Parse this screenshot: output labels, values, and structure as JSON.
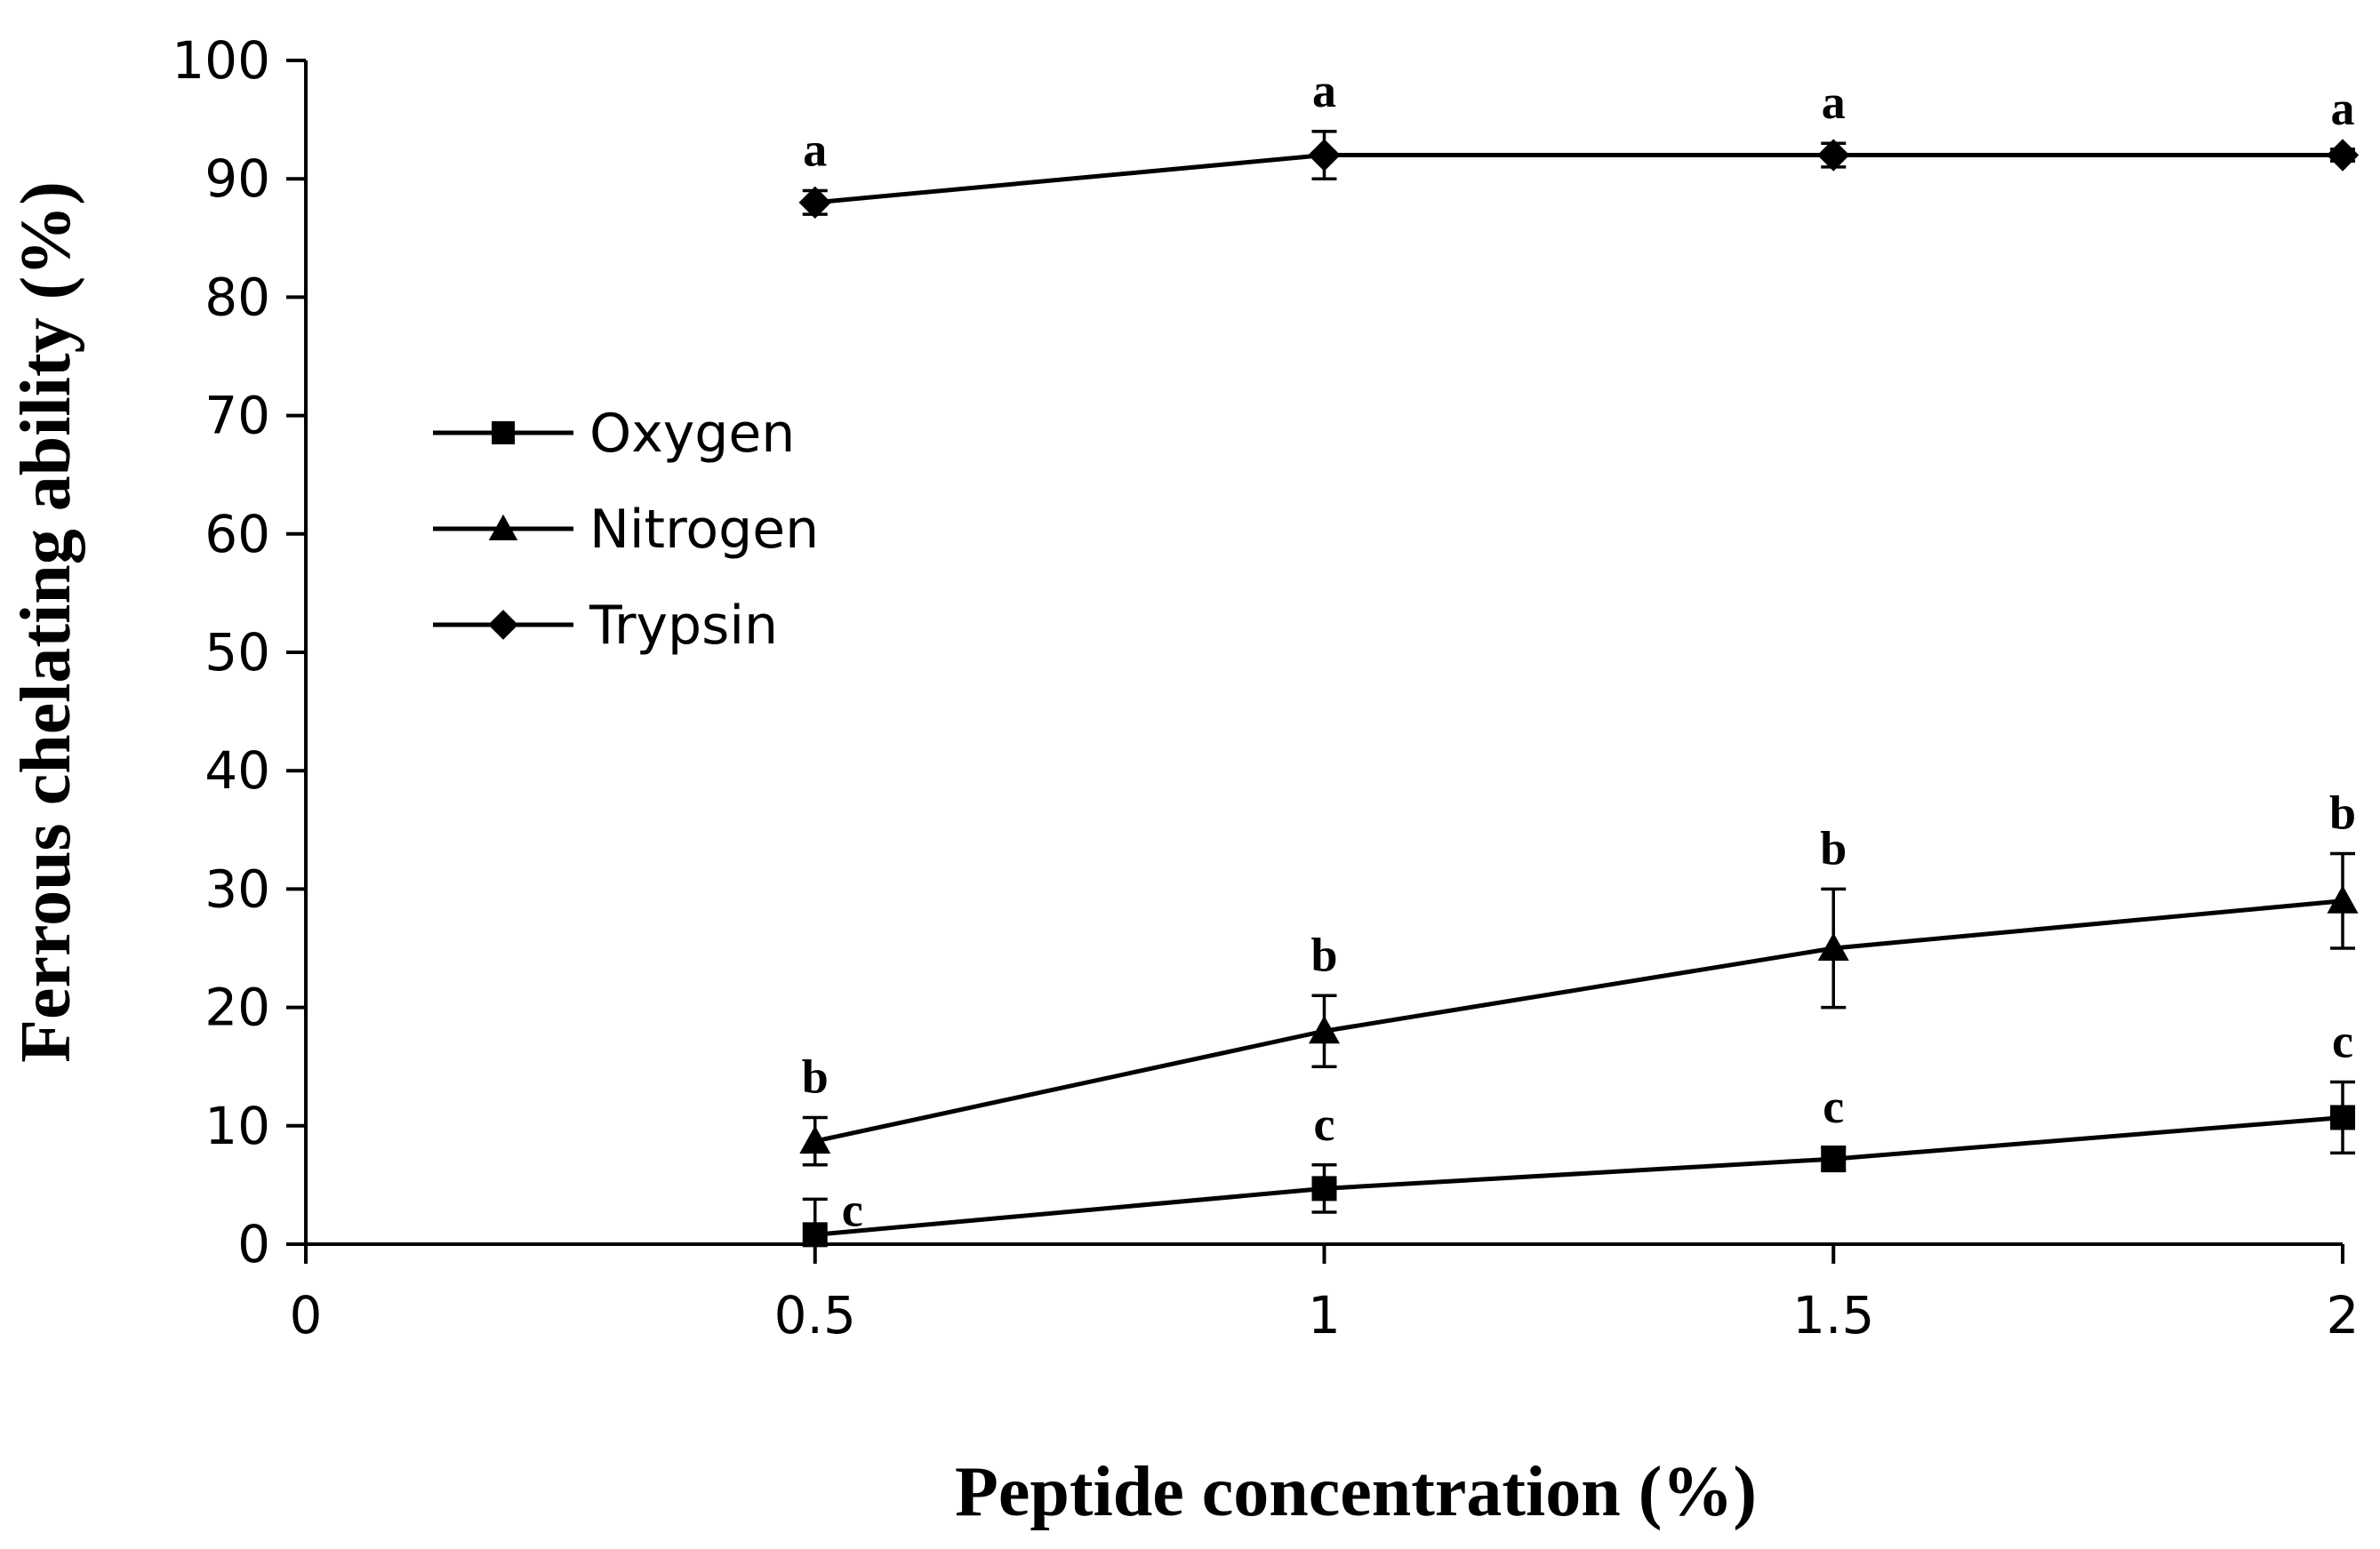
{
  "chart_data": {
    "type": "line",
    "title": "",
    "xlabel": "Peptide concentration (%)",
    "ylabel": "Ferrous chelating ability (%)",
    "xlim": [
      0,
      2
    ],
    "ylim": [
      0,
      100
    ],
    "x_ticks": [
      0,
      0.5,
      1,
      1.5,
      2
    ],
    "x_tick_labels": [
      "0",
      "0.5",
      "1",
      "1.5",
      "2"
    ],
    "y_ticks": [
      0,
      10,
      20,
      30,
      40,
      50,
      60,
      70,
      80,
      90,
      100
    ],
    "y_tick_labels": [
      "0",
      "10",
      "20",
      "30",
      "40",
      "50",
      "60",
      "70",
      "80",
      "90",
      "100"
    ],
    "grid": false,
    "legend_position": "left-middle",
    "x": [
      0.5,
      1,
      1.5,
      2
    ],
    "series": [
      {
        "name": "Oxygen",
        "marker": "square",
        "values": [
          0.8,
          4.7,
          7.2,
          10.7
        ],
        "errors": [
          3.0,
          2.0,
          1.0,
          3.0
        ],
        "letters": [
          "c",
          "c",
          "c",
          "c"
        ]
      },
      {
        "name": "Nitrogen",
        "marker": "triangle",
        "values": [
          8.7,
          18.0,
          25.0,
          29.0
        ],
        "errors": [
          2.0,
          3.0,
          5.0,
          4.0
        ],
        "letters": [
          "b",
          "b",
          "b",
          "b"
        ]
      },
      {
        "name": "Trypsin",
        "marker": "diamond",
        "values": [
          88.0,
          92.0,
          92.0,
          92.0
        ],
        "errors": [
          1.0,
          2.0,
          1.0,
          0.5
        ],
        "letters": [
          "a",
          "a",
          "a",
          "a"
        ]
      }
    ]
  }
}
